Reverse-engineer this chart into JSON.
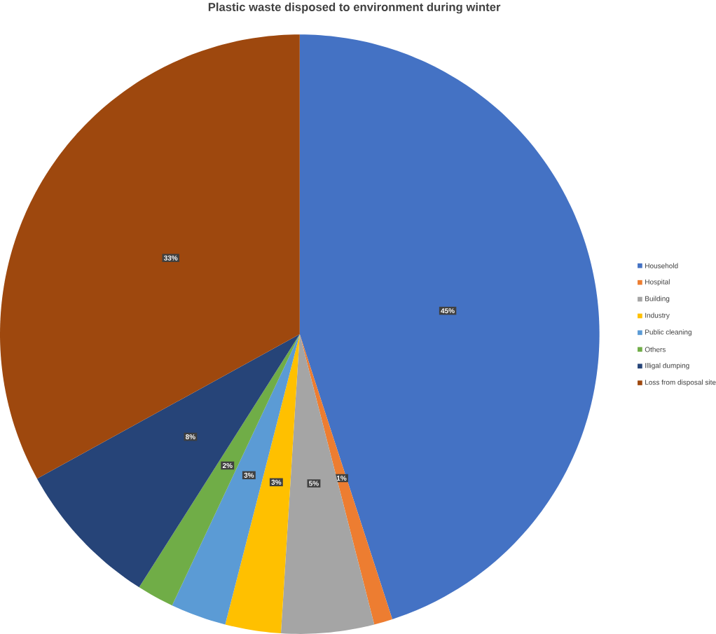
{
  "chart_data": {
    "type": "pie",
    "title": "Plastic waste disposed to environment during winter",
    "categories": [
      "Household",
      "Hospital",
      "Building",
      "Industry",
      "Public cleaning",
      "Others",
      "Illigal dumping",
      "Loss from disposal site"
    ],
    "values": [
      45,
      1,
      5,
      3,
      3,
      2,
      8,
      33
    ],
    "colors": [
      "#4472c4",
      "#ed7d31",
      "#a5a5a5",
      "#ffc000",
      "#5b9bd5",
      "#70ad47",
      "#264478",
      "#9e480e"
    ],
    "value_labels": [
      "45%",
      "1%",
      "5%",
      "3%",
      "3%",
      "2%",
      "8%",
      "33%"
    ],
    "legend": "right"
  }
}
